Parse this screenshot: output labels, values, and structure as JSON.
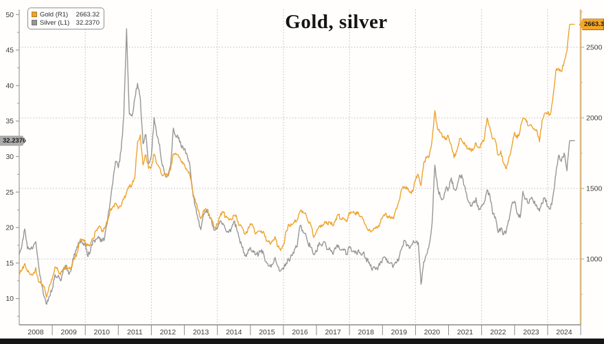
{
  "title": "Gold, silver",
  "legend": {
    "items": [
      {
        "label": "Gold (R1)",
        "value": "2663.32",
        "swatch": "gold-swatch"
      },
      {
        "label": "Silver (L1)",
        "value": "32.2370",
        "swatch": "silver-swatch"
      }
    ]
  },
  "badges": {
    "gold": "2663.32",
    "silver": "32.2370"
  },
  "colors": {
    "gold_line": "#EDA32B",
    "silver_line": "#969696",
    "gold_badge_bg": "#F6A623",
    "gold_badge_border": "#9a6a10",
    "silver_badge_bg": "#ACACAC",
    "right_axis": "#D9BA82",
    "left_axis": "#9a9a9a",
    "x_axis": "#8a8a8a",
    "grid": "#b9b9b9",
    "tick_text": "#3b3b3b",
    "bottom_bar": "#161616"
  },
  "chart_data": {
    "type": "line",
    "title": "Gold, silver",
    "xlabel": "",
    "ylabel_left": "",
    "ylabel_right": "",
    "legend_position": "top-left",
    "grid_style": "dotted",
    "x_start_year": 2008,
    "x_end_year": 2025,
    "points_per_year": 12,
    "x_tick_years": [
      "2008",
      "2009",
      "2010",
      "2011",
      "2012",
      "2013",
      "2014",
      "2015",
      "2016",
      "2017",
      "2018",
      "2019",
      "2020",
      "2021",
      "2022",
      "2023",
      "2024"
    ],
    "left_axis": {
      "ticks": [
        10,
        15,
        20,
        25,
        30,
        35,
        40,
        45,
        50
      ],
      "minor_step": 2.5,
      "max": 50.7,
      "min": 6.3
    },
    "right_axis": {
      "ticks": [
        1000,
        1500,
        2000,
        2500
      ],
      "minor_step": 250,
      "max": 2767,
      "min": 534
    },
    "grid": {
      "v_years": [
        2010,
        2012,
        2014,
        2016,
        2018,
        2020,
        2022,
        2024
      ],
      "h_values_right_axis": [
        1000,
        1500,
        2000,
        2500
      ]
    },
    "series": [
      {
        "name": "Silver (L1)",
        "axis": "left",
        "color": "#969696",
        "jitter": 0.38,
        "last": 32.237,
        "monthly_from": "2008-01",
        "values": [
          16.2,
          17.5,
          19.8,
          17.0,
          16.9,
          17.1,
          18.0,
          14.8,
          12.1,
          10.3,
          9.2,
          10.3,
          11.3,
          13.4,
          13.1,
          12.5,
          14.0,
          14.7,
          13.4,
          14.3,
          16.3,
          17.3,
          18.0,
          17.7,
          17.8,
          15.9,
          17.1,
          18.2,
          18.4,
          18.5,
          18.0,
          18.4,
          20.6,
          23.4,
          26.2,
          29.3,
          28.4,
          30.8,
          35.8,
          48.0,
          36.0,
          35.7,
          38.2,
          40.3,
          38.2,
          31.8,
          33.1,
          29.0,
          30.1,
          35.5,
          32.9,
          31.7,
          28.7,
          27.5,
          27.4,
          28.7,
          34.0,
          32.7,
          32.7,
          31.2,
          31.1,
          30.3,
          28.8,
          25.2,
          23.0,
          21.1,
          19.7,
          21.9,
          22.5,
          21.9,
          20.7,
          19.6,
          19.9,
          20.9,
          20.6,
          19.7,
          19.3,
          19.8,
          20.9,
          19.8,
          18.5,
          17.2,
          16.0,
          16.3,
          17.2,
          16.8,
          16.2,
          16.3,
          16.9,
          16.0,
          15.0,
          14.6,
          14.8,
          15.8,
          14.5,
          13.9,
          14.1,
          15.0,
          15.4,
          16.1,
          16.9,
          17.3,
          20.2,
          19.6,
          19.2,
          17.7,
          17.2,
          16.2,
          16.6,
          17.9,
          17.4,
          18.0,
          16.9,
          16.9,
          16.2,
          17.0,
          17.5,
          16.8,
          17.0,
          16.2,
          17.2,
          16.6,
          16.4,
          16.6,
          16.4,
          16.5,
          15.7,
          15.0,
          14.2,
          14.5,
          14.3,
          14.7,
          15.6,
          15.8,
          15.3,
          15.0,
          14.6,
          15.0,
          15.8,
          17.1,
          18.2,
          17.6,
          17.1,
          17.8,
          17.9,
          17.9,
          12.0,
          15.2,
          16.2,
          17.7,
          20.6,
          28.8,
          25.7,
          24.3,
          24.0,
          25.4,
          25.5,
          27.0,
          25.4,
          25.6,
          27.4,
          27.0,
          25.7,
          23.9,
          23.0,
          23.5,
          24.2,
          22.5,
          23.1,
          23.6,
          25.3,
          24.6,
          21.9,
          21.5,
          19.3,
          19.9,
          19.0,
          19.5,
          21.0,
          23.3,
          23.7,
          21.9,
          21.4,
          25.1,
          24.0,
          23.4,
          24.1,
          23.4,
          23.2,
          22.3,
          23.4,
          24.2,
          22.9,
          22.6,
          24.6,
          27.5,
          30.2,
          29.3,
          30.5,
          28.0,
          32.237
        ]
      },
      {
        "name": "Gold (R1)",
        "axis": "right",
        "color": "#EDA32B",
        "jitter": 15,
        "last": 2663.32,
        "monthly_from": "2008-01",
        "values": [
          890,
          922,
          968,
          910,
          889,
          889,
          940,
          839,
          829,
          807,
          730,
          816,
          858,
          943,
          924,
          890,
          929,
          946,
          934,
          949,
          997,
          1043,
          1127,
          1135,
          1118,
          1095,
          1113,
          1149,
          1205,
          1233,
          1193,
          1216,
          1271,
          1342,
          1370,
          1391,
          1356,
          1374,
          1424,
          1474,
          1512,
          1529,
          1573,
          1830,
          1880,
          1666,
          1738,
          1642,
          1656,
          1743,
          1674,
          1649,
          1591,
          1598,
          1594,
          1630,
          1745,
          1747,
          1721,
          1684,
          1671,
          1627,
          1593,
          1485,
          1414,
          1343,
          1286,
          1347,
          1348,
          1316,
          1276,
          1221,
          1244,
          1301,
          1336,
          1299,
          1288,
          1279,
          1311,
          1296,
          1237,
          1222,
          1176,
          1201,
          1251,
          1227,
          1178,
          1198,
          1199,
          1181,
          1128,
          1117,
          1125,
          1159,
          1086,
          1060,
          1097,
          1199,
          1246,
          1242,
          1260,
          1276,
          1337,
          1340,
          1326,
          1266,
          1238,
          1152,
          1192,
          1234,
          1231,
          1266,
          1246,
          1260,
          1236,
          1283,
          1314,
          1280,
          1282,
          1264,
          1331,
          1330,
          1324,
          1334,
          1303,
          1281,
          1238,
          1201,
          1198,
          1215,
          1221,
          1250,
          1292,
          1320,
          1301,
          1286,
          1284,
          1359,
          1413,
          1498,
          1511,
          1495,
          1471,
          1479,
          1561,
          1597,
          1520,
          1683,
          1716,
          1732,
          1843,
          2050,
          1922,
          1900,
          1866,
          1856,
          1867,
          1808,
          1718,
          1762,
          1853,
          1835,
          1807,
          1784,
          1777,
          1777,
          1822,
          1787,
          1817,
          1856,
          2000,
          1937,
          1850,
          1837,
          1736,
          1765,
          1681,
          1640,
          1726,
          1798,
          1898,
          1855,
          1913,
          2000,
          1992,
          1943,
          1951,
          1918,
          1916,
          1830,
          1984,
          2035,
          2034,
          2023,
          2158,
          2336,
          2351,
          2327,
          2398,
          2470,
          2663.32
        ]
      }
    ]
  }
}
